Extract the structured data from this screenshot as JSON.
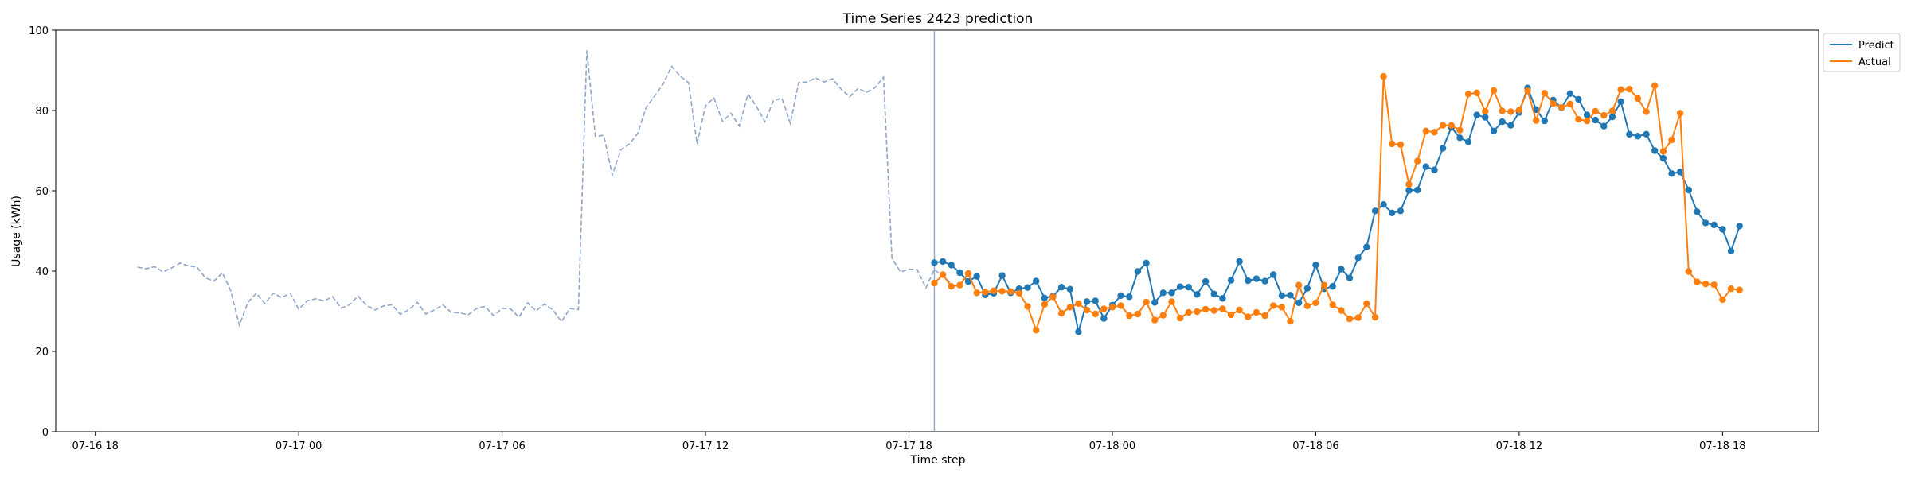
{
  "chart_data": {
    "type": "line",
    "title": "Time Series 2423 prediction",
    "xlabel": "Time step",
    "ylabel": "Usage (kWh)",
    "xlim": [
      "2023-07-16 16:50",
      "2023-07-18 20:50"
    ],
    "ylim": [
      0,
      100
    ],
    "x_ticks": [
      {
        "t": "2023-07-16 18:00",
        "label": "07-16 18"
      },
      {
        "t": "2023-07-17 00:00",
        "label": "07-17 00"
      },
      {
        "t": "2023-07-17 06:00",
        "label": "07-17 06"
      },
      {
        "t": "2023-07-17 12:00",
        "label": "07-17 12"
      },
      {
        "t": "2023-07-17 18:00",
        "label": "07-17 18"
      },
      {
        "t": "2023-07-18 00:00",
        "label": "07-18 00"
      },
      {
        "t": "2023-07-18 06:00",
        "label": "07-18 06"
      },
      {
        "t": "2023-07-18 12:00",
        "label": "07-18 12"
      },
      {
        "t": "2023-07-18 18:00",
        "label": "07-18 18"
      }
    ],
    "y_ticks": [
      0,
      20,
      40,
      60,
      80,
      100
    ],
    "grid": false,
    "legend_position": "upper-right-outside",
    "series_interval_minutes": 15,
    "history": {
      "color": "#8fa6c9",
      "style": "dashed",
      "start": "2023-07-16 19:15",
      "values": [
        41.0,
        40.6,
        41.1,
        39.8,
        40.8,
        42.0,
        41.3,
        41.0,
        38.3,
        37.5,
        39.6,
        35.0,
        26.5,
        32.2,
        34.5,
        31.9,
        34.5,
        33.4,
        34.5,
        30.5,
        32.6,
        33.1,
        32.6,
        33.6,
        30.8,
        31.6,
        33.8,
        31.5,
        30.3,
        31.3,
        31.6,
        29.2,
        30.4,
        32.2,
        29.3,
        30.3,
        31.6,
        29.7,
        29.6,
        29.1,
        30.7,
        31.2,
        28.9,
        30.7,
        30.6,
        28.5,
        32.1,
        30.1,
        31.8,
        30.3,
        27.4,
        30.7,
        30.4,
        95.0,
        73.6,
        73.8,
        63.9,
        70.2,
        71.6,
        74.3,
        80.8,
        83.6,
        86.6,
        91.0,
        88.6,
        86.9,
        71.7,
        81.2,
        83.1,
        77.3,
        79.3,
        76.1,
        84.1,
        81.1,
        77.2,
        82.4,
        83.1,
        76.8,
        87.0,
        87.1,
        88.1,
        87.1,
        87.9,
        85.3,
        83.4,
        85.5,
        84.5,
        85.7,
        88.3,
        43.2,
        39.8,
        40.5,
        40.3,
        35.8,
        40.4,
        38.7,
        37.0
      ]
    },
    "forecast_start": "2023-07-17 18:45",
    "series": [
      {
        "name": "Predict",
        "color": "#1f77b4",
        "start": "2023-07-17 18:45",
        "values": [
          42.1,
          42.4,
          41.5,
          39.6,
          37.4,
          38.7,
          34.1,
          34.5,
          38.9,
          34.6,
          35.6,
          35.9,
          37.5,
          33.3,
          33.8,
          36.0,
          35.5,
          24.9,
          32.4,
          32.6,
          28.2,
          31.5,
          33.9,
          33.6,
          39.9,
          42.0,
          32.2,
          34.6,
          34.6,
          36.1,
          36.0,
          34.2,
          37.4,
          34.3,
          33.2,
          37.7,
          42.4,
          37.6,
          38.1,
          37.5,
          39.1,
          33.9,
          34.0,
          32.1,
          35.7,
          41.5,
          35.6,
          36.2,
          40.5,
          38.3,
          43.3,
          46.0,
          55.0,
          56.6,
          54.5,
          55.0,
          60.1,
          60.2,
          66.0,
          65.2,
          70.6,
          75.8,
          73.2,
          72.2,
          78.9,
          78.3,
          74.9,
          77.2,
          76.3,
          79.5,
          85.6,
          80.2,
          77.4,
          82.6,
          80.7,
          84.2,
          82.8,
          78.9,
          77.6,
          76.1,
          78.4,
          82.2,
          74.1,
          73.6,
          74.1,
          70.0,
          68.1,
          64.3,
          64.7,
          60.2,
          54.8,
          52.0,
          51.5,
          50.4,
          45.0,
          51.2
        ]
      },
      {
        "name": "Actual",
        "color": "#ff7f0e",
        "start": "2023-07-17 18:45",
        "values": [
          37.0,
          39.1,
          36.2,
          36.5,
          39.4,
          34.6,
          34.8,
          35.1,
          35.0,
          34.9,
          34.5,
          31.2,
          25.3,
          31.7,
          33.6,
          29.5,
          31.0,
          31.9,
          30.3,
          29.3,
          30.6,
          31.0,
          31.4,
          28.9,
          29.3,
          32.3,
          27.8,
          29.0,
          32.4,
          28.3,
          29.7,
          29.9,
          30.5,
          30.2,
          30.6,
          29.1,
          30.3,
          28.6,
          29.7,
          28.9,
          31.4,
          31.0,
          27.5,
          36.5,
          31.3,
          32.1,
          36.5,
          31.6,
          30.2,
          28.1,
          28.4,
          31.9,
          28.5,
          88.5,
          71.7,
          71.5,
          61.6,
          67.4,
          74.9,
          74.6,
          76.3,
          76.3,
          75.1,
          84.1,
          84.4,
          79.8,
          85.0,
          79.9,
          79.7,
          80.1,
          84.9,
          77.5,
          84.3,
          81.7,
          80.8,
          81.6,
          77.8,
          77.4,
          79.8,
          78.8,
          79.9,
          85.2,
          85.3,
          83.0,
          79.7,
          86.2,
          69.8,
          72.7,
          79.3,
          39.9,
          37.3,
          36.8,
          36.6,
          32.9,
          35.6,
          35.3
        ]
      }
    ]
  }
}
